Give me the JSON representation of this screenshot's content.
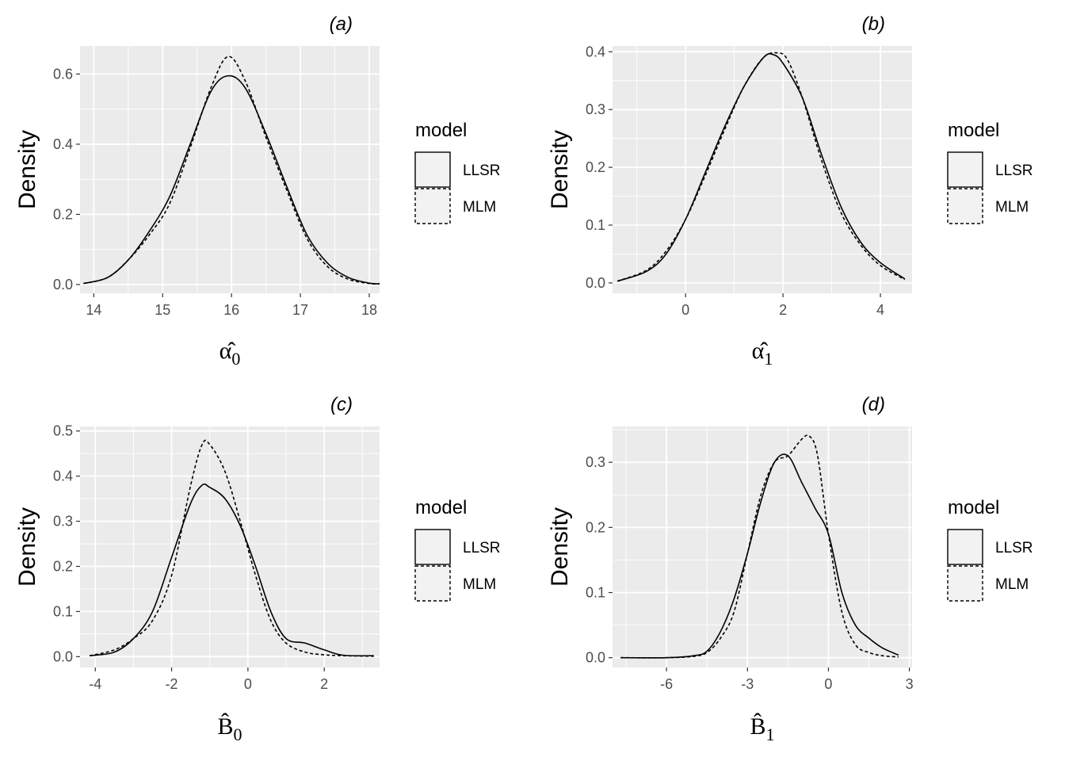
{
  "chart_data": [
    {
      "type": "line",
      "panel": "(a)",
      "title": "(a)",
      "ylabel": "Density",
      "xlabel_symbol": "α̂",
      "xlabel_sub": "0",
      "xlim": [
        13.8,
        18.15
      ],
      "ylim": [
        -0.025,
        0.68
      ],
      "xticks": [
        14,
        15,
        16,
        17,
        18
      ],
      "xtick_labels": [
        "14",
        "15",
        "16",
        "17",
        "18"
      ],
      "yticks": [
        0.0,
        0.2,
        0.4,
        0.6
      ],
      "ytick_labels": [
        "0.0",
        "0.2",
        "0.4",
        "0.6"
      ],
      "legend": {
        "title": "model",
        "entries": [
          "LLSR",
          "MLM"
        ]
      },
      "series": [
        {
          "name": "LLSR",
          "linestyle": "solid",
          "x": [
            13.85,
            14.2,
            14.5,
            14.8,
            15.1,
            15.4,
            15.7,
            15.95,
            16.2,
            16.5,
            16.8,
            17.1,
            17.4,
            17.7,
            18.0,
            18.15
          ],
          "y": [
            0.003,
            0.02,
            0.07,
            0.15,
            0.25,
            0.4,
            0.55,
            0.595,
            0.56,
            0.43,
            0.28,
            0.14,
            0.06,
            0.02,
            0.004,
            0.002
          ]
        },
        {
          "name": "MLM",
          "linestyle": "dashed",
          "x": [
            13.85,
            14.2,
            14.5,
            14.8,
            15.1,
            15.4,
            15.7,
            15.95,
            16.2,
            16.5,
            16.8,
            17.1,
            17.4,
            17.7,
            18.0,
            18.15
          ],
          "y": [
            0.003,
            0.02,
            0.07,
            0.14,
            0.23,
            0.39,
            0.56,
            0.65,
            0.58,
            0.42,
            0.27,
            0.13,
            0.05,
            0.015,
            0.003,
            0.002
          ]
        }
      ]
    },
    {
      "type": "line",
      "panel": "(b)",
      "title": "(b)",
      "ylabel": "Density",
      "xlabel_symbol": "α̂",
      "xlabel_sub": "1",
      "xlim": [
        -1.5,
        4.65
      ],
      "ylim": [
        -0.018,
        0.41
      ],
      "xticks": [
        0,
        2,
        4
      ],
      "xtick_labels": [
        "0",
        "2",
        "4"
      ],
      "yticks": [
        0.0,
        0.1,
        0.2,
        0.3,
        0.4
      ],
      "ytick_labels": [
        "0.0",
        "0.1",
        "0.2",
        "0.3",
        "0.4"
      ],
      "legend": {
        "title": "model",
        "entries": [
          "LLSR",
          "MLM"
        ]
      },
      "series": [
        {
          "name": "LLSR",
          "linestyle": "solid",
          "x": [
            -1.4,
            -0.8,
            -0.4,
            0.0,
            0.4,
            0.8,
            1.2,
            1.6,
            1.8,
            2.0,
            2.4,
            2.8,
            3.2,
            3.6,
            4.0,
            4.5
          ],
          "y": [
            0.003,
            0.02,
            0.05,
            0.11,
            0.19,
            0.27,
            0.34,
            0.39,
            0.395,
            0.38,
            0.32,
            0.22,
            0.13,
            0.07,
            0.035,
            0.007
          ]
        },
        {
          "name": "MLM",
          "linestyle": "dashed",
          "x": [
            -1.4,
            -0.8,
            -0.4,
            0.0,
            0.4,
            0.8,
            1.2,
            1.6,
            1.9,
            2.1,
            2.4,
            2.8,
            3.2,
            3.6,
            4.0,
            4.5
          ],
          "y": [
            0.003,
            0.022,
            0.055,
            0.11,
            0.185,
            0.265,
            0.34,
            0.39,
            0.398,
            0.385,
            0.32,
            0.21,
            0.12,
            0.065,
            0.03,
            0.006
          ]
        }
      ]
    },
    {
      "type": "line",
      "panel": "(c)",
      "title": "(c)",
      "ylabel": "Density",
      "xlabel_symbol": "B̂",
      "xlabel_sub": "0",
      "xlim": [
        -4.4,
        3.45
      ],
      "ylim": [
        -0.024,
        0.51
      ],
      "xticks": [
        -4,
        -2,
        0,
        2
      ],
      "xtick_labels": [
        "-4",
        "-2",
        "0",
        "2"
      ],
      "yticks": [
        0.0,
        0.1,
        0.2,
        0.3,
        0.4,
        0.5
      ],
      "ytick_labels": [
        "0.0",
        "0.1",
        "0.2",
        "0.3",
        "0.4",
        "0.5"
      ],
      "legend": {
        "title": "model",
        "entries": [
          "LLSR",
          "MLM"
        ]
      },
      "series": [
        {
          "name": "LLSR",
          "linestyle": "solid",
          "x": [
            -4.15,
            -3.5,
            -3.0,
            -2.5,
            -2.0,
            -1.5,
            -1.2,
            -1.0,
            -0.6,
            -0.2,
            0.2,
            0.6,
            1.0,
            1.5,
            2.0,
            2.5,
            3.3
          ],
          "y": [
            0.002,
            0.01,
            0.04,
            0.1,
            0.22,
            0.34,
            0.38,
            0.375,
            0.35,
            0.29,
            0.2,
            0.1,
            0.04,
            0.03,
            0.015,
            0.003,
            0.002
          ]
        },
        {
          "name": "MLM",
          "linestyle": "dashed",
          "x": [
            -4.15,
            -3.5,
            -3.0,
            -2.5,
            -2.0,
            -1.5,
            -1.2,
            -1.0,
            -0.6,
            -0.2,
            0.2,
            0.6,
            1.0,
            1.5,
            2.0,
            2.5,
            3.3
          ],
          "y": [
            0.002,
            0.015,
            0.04,
            0.08,
            0.18,
            0.38,
            0.47,
            0.47,
            0.41,
            0.3,
            0.18,
            0.08,
            0.03,
            0.01,
            0.004,
            0.002,
            0.001
          ]
        }
      ]
    },
    {
      "type": "line",
      "panel": "(d)",
      "title": "(d)",
      "ylabel": "Density",
      "xlabel_symbol": "B̂",
      "xlabel_sub": "1",
      "xlim": [
        -8.0,
        3.1
      ],
      "ylim": [
        -0.015,
        0.355
      ],
      "xticks": [
        -6,
        -3,
        0,
        3
      ],
      "xtick_labels": [
        "-6",
        "-3",
        "0",
        "3"
      ],
      "yticks": [
        0.0,
        0.1,
        0.2,
        0.3
      ],
      "ytick_labels": [
        "0.0",
        "0.1",
        "0.2",
        "0.3"
      ],
      "legend": {
        "title": "model",
        "entries": [
          "LLSR",
          "MLM"
        ]
      },
      "series": [
        {
          "name": "LLSR",
          "linestyle": "solid",
          "x": [
            -7.7,
            -6.0,
            -5.0,
            -4.5,
            -4.0,
            -3.5,
            -3.0,
            -2.5,
            -2.0,
            -1.5,
            -1.0,
            -0.5,
            0.0,
            0.5,
            1.0,
            1.5,
            2.0,
            2.6
          ],
          "y": [
            0.0,
            0.0,
            0.003,
            0.01,
            0.04,
            0.09,
            0.16,
            0.24,
            0.3,
            0.31,
            0.27,
            0.23,
            0.19,
            0.1,
            0.05,
            0.03,
            0.015,
            0.004
          ]
        },
        {
          "name": "MLM",
          "linestyle": "dashed",
          "x": [
            -7.7,
            -6.0,
            -5.0,
            -4.5,
            -4.0,
            -3.5,
            -3.0,
            -2.5,
            -2.0,
            -1.5,
            -1.0,
            -0.7,
            -0.4,
            0.0,
            0.5,
            1.0,
            1.5,
            2.0,
            2.6
          ],
          "y": [
            0.0,
            0.0,
            0.002,
            0.008,
            0.03,
            0.07,
            0.16,
            0.25,
            0.3,
            0.31,
            0.335,
            0.34,
            0.31,
            0.19,
            0.07,
            0.02,
            0.008,
            0.003,
            0.001
          ]
        }
      ]
    }
  ]
}
